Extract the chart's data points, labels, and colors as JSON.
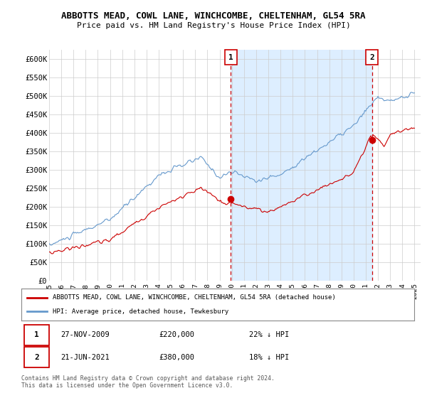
{
  "title": "ABBOTTS MEAD, COWL LANE, WINCHCOMBE, CHELTENHAM, GL54 5RA",
  "subtitle": "Price paid vs. HM Land Registry's House Price Index (HPI)",
  "ylabel_ticks": [
    "£0",
    "£50K",
    "£100K",
    "£150K",
    "£200K",
    "£250K",
    "£300K",
    "£350K",
    "£400K",
    "£450K",
    "£500K",
    "£550K",
    "£600K"
  ],
  "ytick_values": [
    0,
    50000,
    100000,
    150000,
    200000,
    250000,
    300000,
    350000,
    400000,
    450000,
    500000,
    550000,
    600000
  ],
  "ylim": [
    0,
    625000
  ],
  "background_color": "#ffffff",
  "plot_bg": "#ffffff",
  "shade_color": "#ddeeff",
  "legend_label_red": "ABBOTTS MEAD, COWL LANE, WINCHCOMBE, CHELTENHAM, GL54 5RA (detached house)",
  "legend_label_blue": "HPI: Average price, detached house, Tewkesbury",
  "marker1_date": "27-NOV-2009",
  "marker1_price": 220000,
  "marker1_pct": "22% ↓ HPI",
  "marker2_date": "21-JUN-2021",
  "marker2_price": 380000,
  "marker2_pct": "18% ↓ HPI",
  "footer": "Contains HM Land Registry data © Crown copyright and database right 2024.\nThis data is licensed under the Open Government Licence v3.0.",
  "red_color": "#cc0000",
  "blue_color": "#6699cc",
  "grid_color": "#cccccc",
  "xtick_years": [
    1995,
    1996,
    1997,
    1998,
    1999,
    2000,
    2001,
    2002,
    2003,
    2004,
    2005,
    2006,
    2007,
    2008,
    2009,
    2010,
    2011,
    2012,
    2013,
    2014,
    2015,
    2016,
    2017,
    2018,
    2019,
    2020,
    2021,
    2022,
    2023,
    2024,
    2025
  ]
}
